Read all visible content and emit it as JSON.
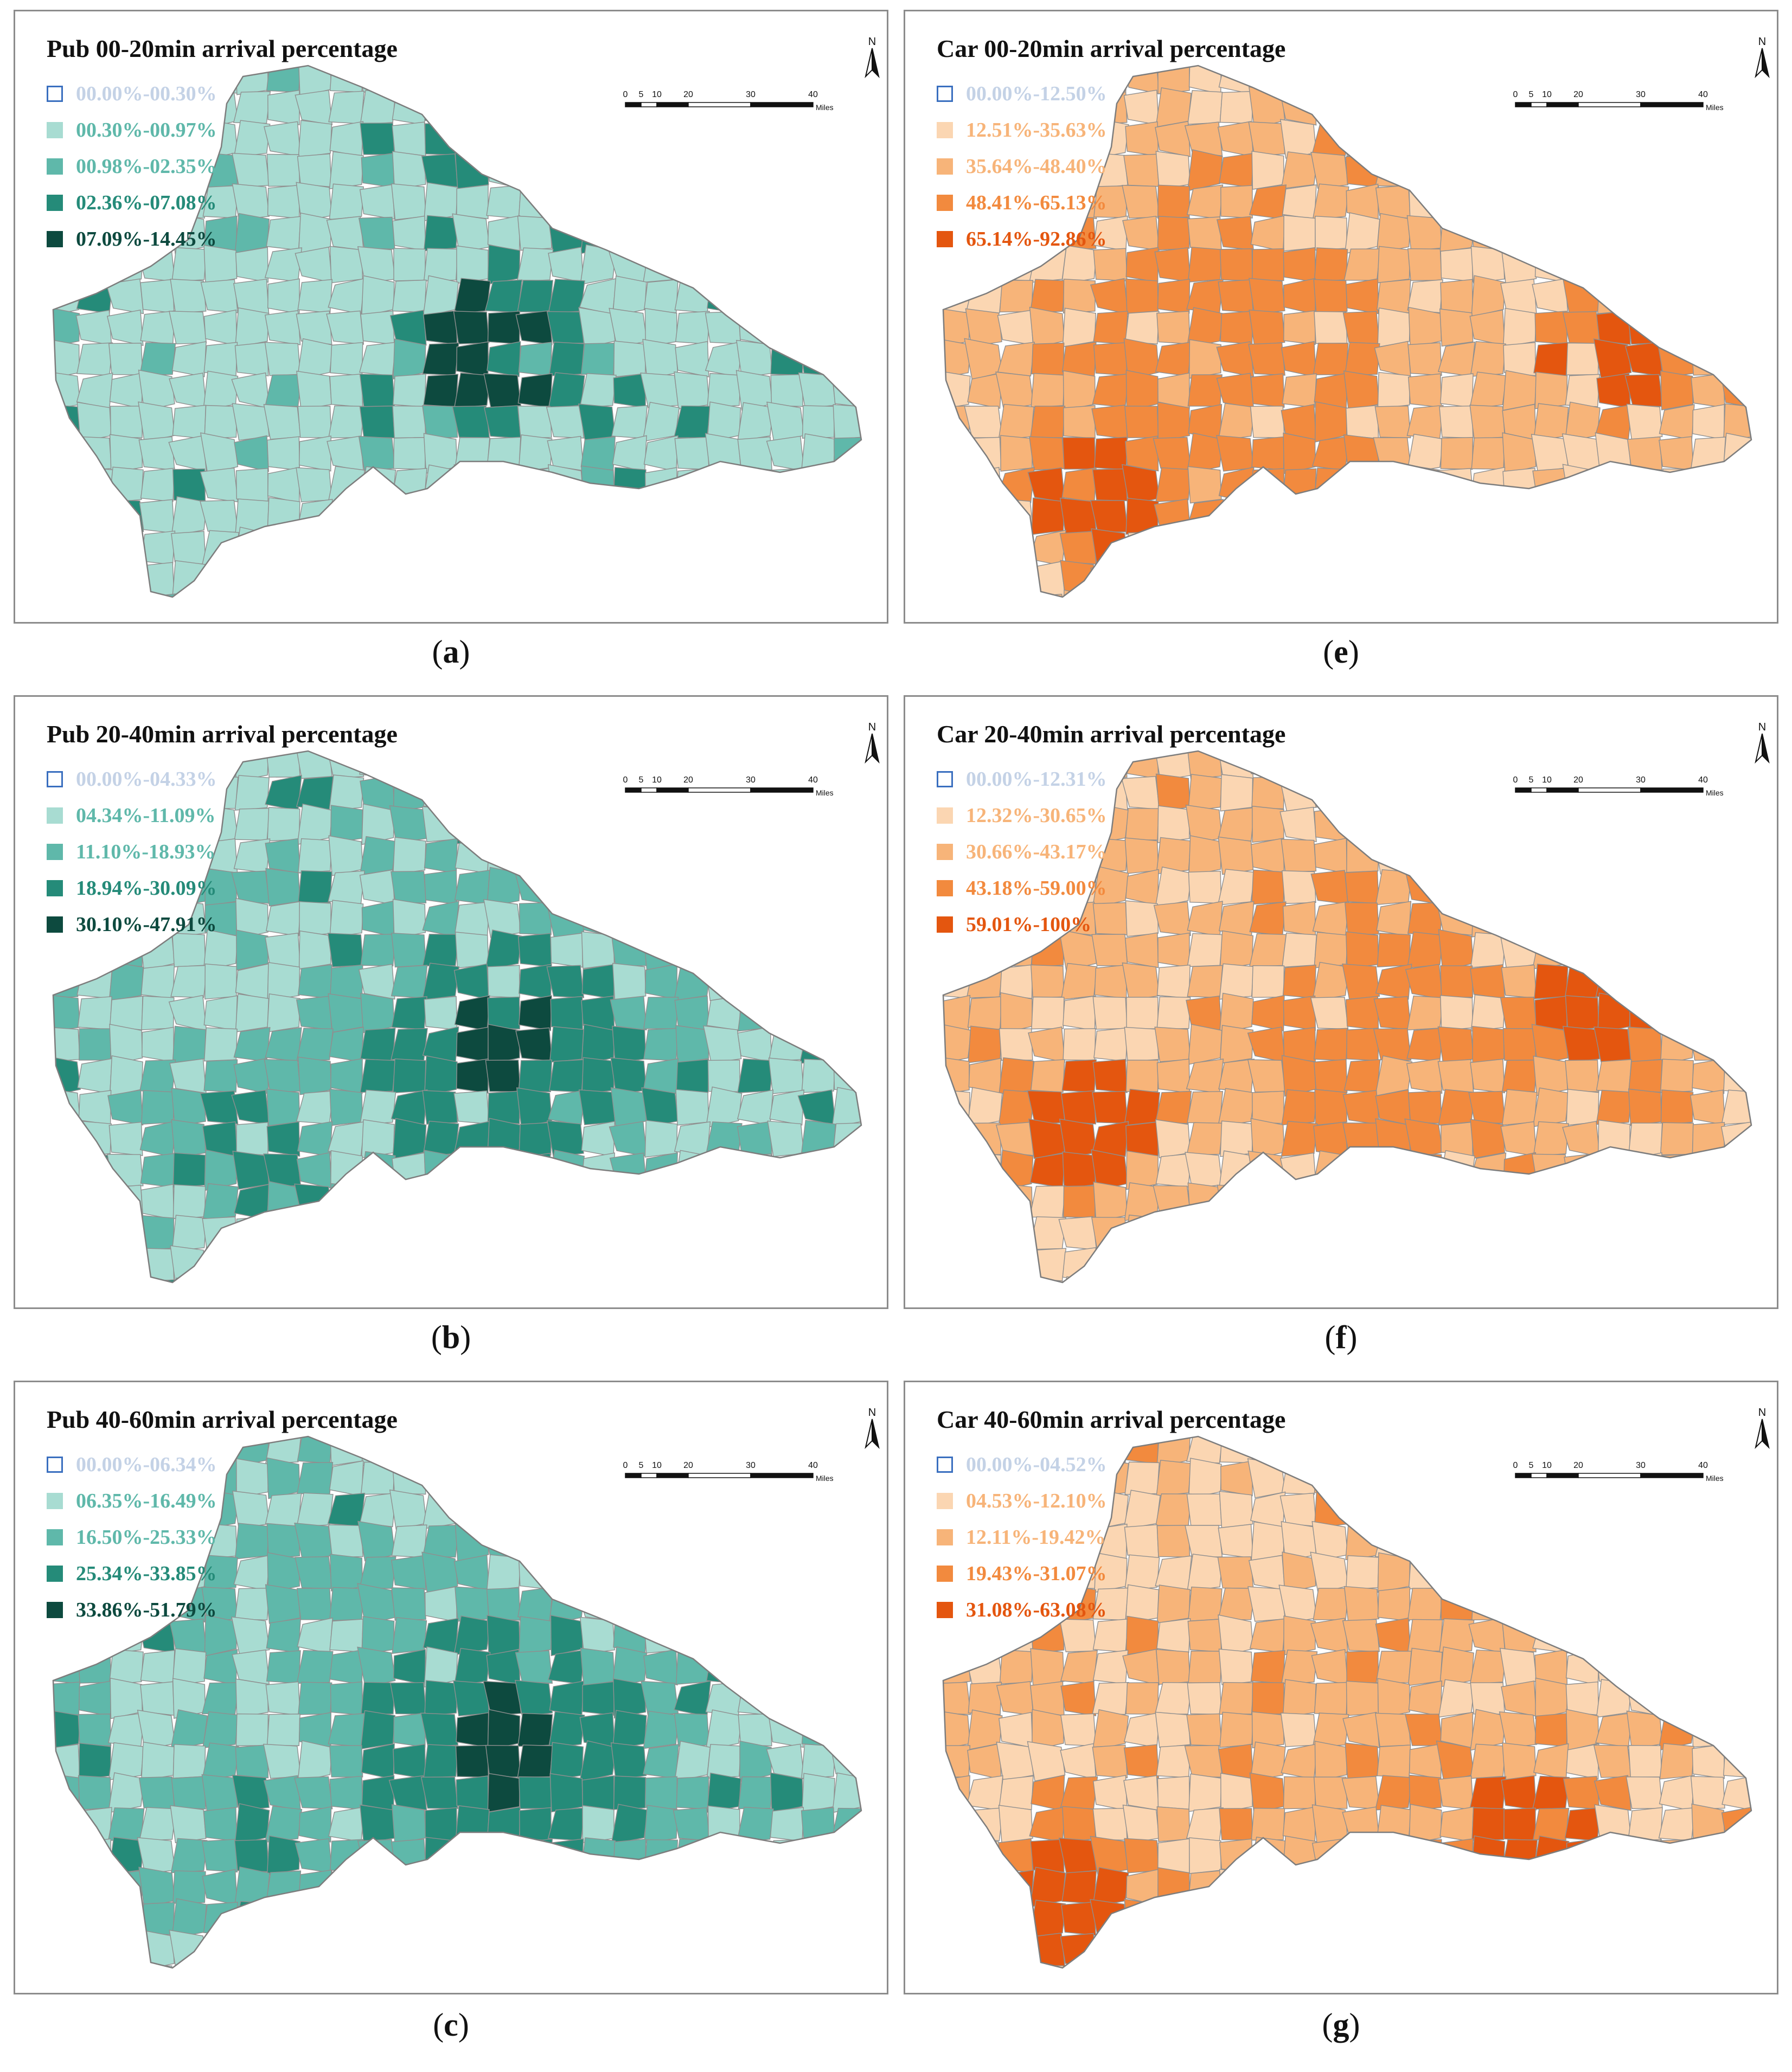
{
  "scale": {
    "ticks": [
      "0",
      "5",
      "10",
      "20",
      "30",
      "40"
    ],
    "unit": "Miles"
  },
  "north_label": "N",
  "colors": {
    "pub": [
      "#e6f3f1",
      "#a8dcd2",
      "#5fb8aa",
      "#258b79",
      "#0d4a3f"
    ],
    "car": [
      "#fdf0e2",
      "#fbd6b2",
      "#f7b479",
      "#f28a3e",
      "#e4560f"
    ],
    "first_class_text": [
      "#c4d2e6",
      "#c4d2e6"
    ]
  },
  "panels": [
    {
      "id": "a",
      "mode": "pub",
      "title": "Pub 00-20min arrival percentage",
      "legend": [
        "00.00%-00.30%",
        "00.30%-00.97%",
        "00.98%-02.35%",
        "02.36%-07.08%",
        "07.09%-14.45%"
      ],
      "caption": {
        "open": "(",
        "letter": "a",
        "close": ")"
      }
    },
    {
      "id": "b",
      "mode": "pub",
      "title": "Pub 20-40min arrival percentage",
      "legend": [
        "00.00%-04.33%",
        "04.34%-11.09%",
        "11.10%-18.93%",
        "18.94%-30.09%",
        "30.10%-47.91%"
      ],
      "caption": {
        "open": "(",
        "letter": "b",
        "close": ")"
      }
    },
    {
      "id": "c",
      "mode": "pub",
      "title": "Pub 40-60min arrival percentage",
      "legend": [
        "00.00%-06.34%",
        "06.35%-16.49%",
        "16.50%-25.33%",
        "25.34%-33.85%",
        "33.86%-51.79%"
      ],
      "caption": {
        "open": "(",
        "letter": "c",
        "close": ")"
      }
    },
    {
      "id": "e",
      "mode": "car",
      "title": "Car 00-20min arrival percentage",
      "legend": [
        "00.00%-12.50%",
        "12.51%-35.63%",
        "35.64%-48.40%",
        "48.41%-65.13%",
        "65.14%-92.86%"
      ],
      "caption": {
        "open": "(",
        "letter": "e",
        "close": ")"
      }
    },
    {
      "id": "f",
      "mode": "car",
      "title": "Car 20-40min arrival percentage",
      "legend": [
        "00.00%-12.31%",
        "12.32%-30.65%",
        "30.66%-43.17%",
        "43.18%-59.00%",
        "59.01%-100%"
      ],
      "caption": {
        "open": "(",
        "letter": "f",
        "close": ")"
      }
    },
    {
      "id": "g",
      "mode": "car",
      "title": "Car 40-60min arrival percentage",
      "legend": [
        "00.00%-04.52%",
        "04.53%-12.10%",
        "12.11%-19.42%",
        "19.43%-31.07%",
        "31.08%-63.08%"
      ],
      "caption": {
        "open": "(",
        "letter": "g",
        "close": ")"
      }
    }
  ]
}
